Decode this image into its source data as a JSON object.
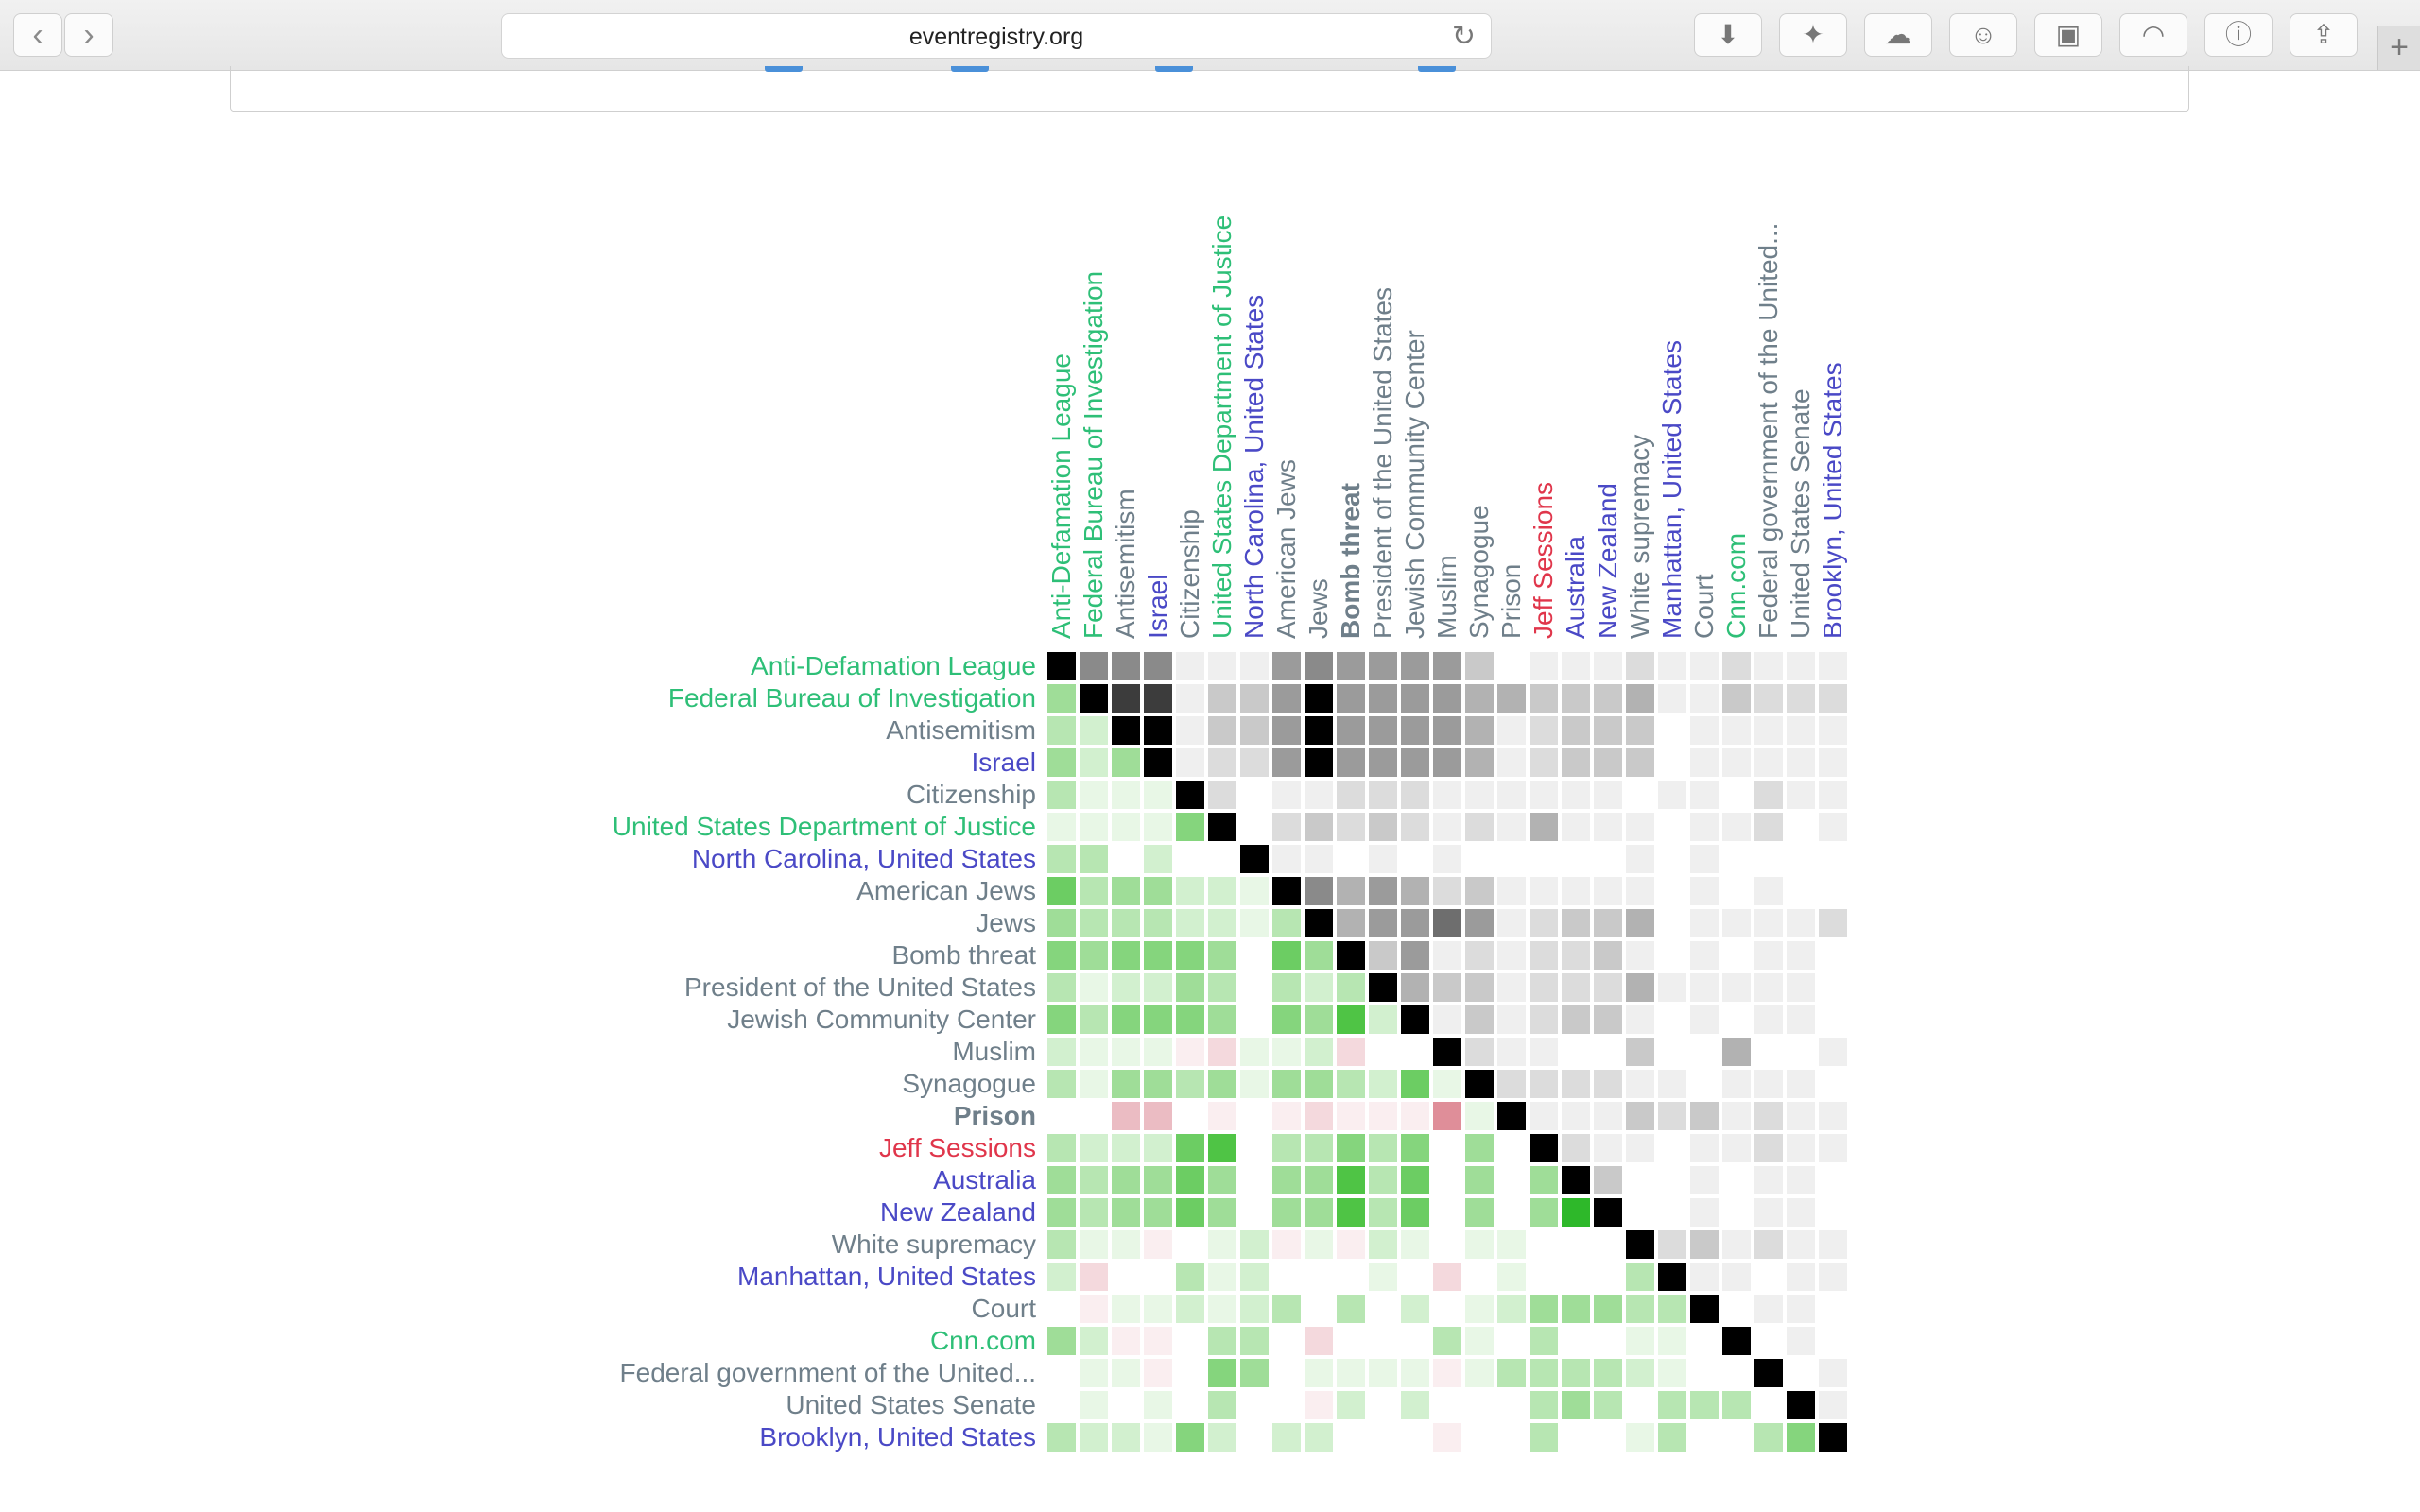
{
  "browser": {
    "url": "eventregistry.org",
    "back_icon": "chevron-left-icon",
    "forward_icon": "chevron-right-icon",
    "reload_icon": "reload-icon",
    "toolbar_icons": [
      "download-icon",
      "magic-wand-icon",
      "cloud-icon",
      "ghost-icon",
      "extension-icon",
      "reader-icon",
      "info-icon",
      "share-icon"
    ],
    "new_tab_icon": "plus-icon"
  },
  "colors": {
    "concept": "#6f7f8a",
    "organization": "#2ebf77",
    "location": "#4a49c6",
    "person": "#e0364b",
    "diagonal": "#000000",
    "positive": "#2ebf3a",
    "negative": "#d9707e"
  },
  "matrix": {
    "entities": [
      {
        "label": "Anti-Defamation League",
        "type": "org"
      },
      {
        "label": "Federal Bureau of Investigation",
        "type": "org"
      },
      {
        "label": "Antisemitism",
        "type": "concept"
      },
      {
        "label": "Israel",
        "type": "loc"
      },
      {
        "label": "Citizenship",
        "type": "concept"
      },
      {
        "label": "United States Department of Justice",
        "type": "org"
      },
      {
        "label": "North Carolina, United States",
        "type": "loc"
      },
      {
        "label": "American Jews",
        "type": "concept"
      },
      {
        "label": "Jews",
        "type": "concept"
      },
      {
        "label": "Bomb threat",
        "type": "concept",
        "col_bold": true
      },
      {
        "label": "President of the United States",
        "type": "concept"
      },
      {
        "label": "Jewish Community Center",
        "type": "concept"
      },
      {
        "label": "Muslim",
        "type": "concept"
      },
      {
        "label": "Synagogue",
        "type": "concept"
      },
      {
        "label": "Prison",
        "type": "concept",
        "row_bold": true
      },
      {
        "label": "Jeff Sessions",
        "type": "person"
      },
      {
        "label": "Australia",
        "type": "loc"
      },
      {
        "label": "New Zealand",
        "type": "loc"
      },
      {
        "label": "White supremacy",
        "type": "concept"
      },
      {
        "label": "Manhattan, United States",
        "type": "loc"
      },
      {
        "label": "Court",
        "type": "concept"
      },
      {
        "label": "Cnn.com",
        "type": "org"
      },
      {
        "label": "Federal government of the United...",
        "type": "concept"
      },
      {
        "label": "United States Senate",
        "type": "concept"
      },
      {
        "label": "Brooklyn, United States",
        "type": "loc"
      }
    ],
    "upper_gray": [
      [
        9,
        6,
        6,
        6,
        1,
        1,
        1,
        5,
        6,
        5,
        5,
        5,
        5,
        3,
        0,
        1,
        1,
        1,
        2,
        1,
        1,
        2,
        1,
        1,
        1
      ],
      [
        0,
        9,
        8,
        8,
        1,
        3,
        3,
        5,
        9,
        5,
        5,
        5,
        5,
        4,
        4,
        3,
        3,
        3,
        4,
        1,
        1,
        3,
        2,
        2,
        2
      ],
      [
        0,
        0,
        9,
        9,
        1,
        3,
        3,
        5,
        9,
        5,
        5,
        5,
        5,
        4,
        1,
        2,
        3,
        3,
        3,
        0,
        1,
        1,
        1,
        1,
        1
      ],
      [
        0,
        0,
        0,
        9,
        1,
        2,
        2,
        5,
        9,
        5,
        5,
        5,
        5,
        4,
        1,
        2,
        3,
        3,
        3,
        0,
        1,
        1,
        1,
        1,
        1
      ],
      [
        0,
        0,
        0,
        0,
        9,
        2,
        0,
        1,
        1,
        2,
        2,
        2,
        1,
        1,
        1,
        1,
        1,
        1,
        0,
        1,
        1,
        0,
        2,
        1,
        1
      ],
      [
        0,
        0,
        0,
        0,
        0,
        9,
        0,
        2,
        3,
        2,
        3,
        2,
        1,
        2,
        1,
        4,
        1,
        1,
        1,
        0,
        1,
        1,
        2,
        0,
        1
      ],
      [
        0,
        0,
        0,
        0,
        0,
        0,
        9,
        1,
        1,
        0,
        1,
        0,
        1,
        0,
        0,
        0,
        0,
        0,
        1,
        0,
        1,
        0,
        0,
        0,
        0
      ],
      [
        0,
        0,
        0,
        0,
        0,
        0,
        0,
        9,
        6,
        4,
        5,
        4,
        2,
        3,
        1,
        1,
        1,
        1,
        1,
        0,
        1,
        0,
        1,
        0,
        0
      ],
      [
        0,
        0,
        0,
        0,
        0,
        0,
        0,
        0,
        9,
        4,
        5,
        5,
        7,
        5,
        1,
        2,
        3,
        3,
        4,
        0,
        1,
        1,
        1,
        1,
        2
      ],
      [
        0,
        0,
        0,
        0,
        0,
        0,
        0,
        0,
        0,
        9,
        3,
        5,
        1,
        2,
        1,
        2,
        2,
        3,
        1,
        0,
        1,
        0,
        1,
        1,
        0
      ],
      [
        0,
        0,
        0,
        0,
        0,
        0,
        0,
        0,
        0,
        0,
        9,
        4,
        3,
        3,
        1,
        2,
        2,
        2,
        4,
        1,
        1,
        1,
        1,
        1,
        0
      ],
      [
        0,
        0,
        0,
        0,
        0,
        0,
        0,
        0,
        0,
        0,
        0,
        9,
        1,
        3,
        1,
        2,
        3,
        3,
        1,
        0,
        1,
        0,
        1,
        1,
        0
      ],
      [
        0,
        0,
        0,
        0,
        0,
        0,
        0,
        0,
        0,
        0,
        0,
        0,
        9,
        2,
        1,
        1,
        0,
        0,
        3,
        0,
        0,
        4,
        0,
        0,
        1
      ],
      [
        0,
        0,
        0,
        0,
        0,
        0,
        0,
        0,
        0,
        0,
        0,
        0,
        0,
        9,
        2,
        2,
        2,
        2,
        1,
        1,
        0,
        1,
        1,
        1,
        0
      ],
      [
        0,
        0,
        0,
        0,
        0,
        0,
        0,
        0,
        0,
        0,
        0,
        0,
        0,
        0,
        9,
        1,
        1,
        1,
        3,
        2,
        3,
        1,
        2,
        1,
        1
      ],
      [
        0,
        0,
        0,
        0,
        0,
        0,
        0,
        0,
        0,
        0,
        0,
        0,
        0,
        0,
        0,
        9,
        2,
        1,
        1,
        0,
        1,
        1,
        2,
        1,
        1
      ],
      [
        0,
        0,
        0,
        0,
        0,
        0,
        0,
        0,
        0,
        0,
        0,
        0,
        0,
        0,
        0,
        0,
        9,
        3,
        0,
        0,
        1,
        0,
        1,
        1,
        0
      ],
      [
        0,
        0,
        0,
        0,
        0,
        0,
        0,
        0,
        0,
        0,
        0,
        0,
        0,
        0,
        0,
        0,
        0,
        9,
        0,
        0,
        1,
        0,
        1,
        1,
        0
      ],
      [
        0,
        0,
        0,
        0,
        0,
        0,
        0,
        0,
        0,
        0,
        0,
        0,
        0,
        0,
        0,
        0,
        0,
        0,
        9,
        2,
        3,
        1,
        2,
        1,
        1
      ],
      [
        0,
        0,
        0,
        0,
        0,
        0,
        0,
        0,
        0,
        0,
        0,
        0,
        0,
        0,
        0,
        0,
        0,
        0,
        0,
        9,
        1,
        1,
        0,
        1,
        1
      ],
      [
        0,
        0,
        0,
        0,
        0,
        0,
        0,
        0,
        0,
        0,
        0,
        0,
        0,
        0,
        0,
        0,
        0,
        0,
        0,
        0,
        9,
        0,
        1,
        1,
        0
      ],
      [
        0,
        0,
        0,
        0,
        0,
        0,
        0,
        0,
        0,
        0,
        0,
        0,
        0,
        0,
        0,
        0,
        0,
        0,
        0,
        0,
        0,
        9,
        0,
        1,
        0
      ],
      [
        0,
        0,
        0,
        0,
        0,
        0,
        0,
        0,
        0,
        0,
        0,
        0,
        0,
        0,
        0,
        0,
        0,
        0,
        0,
        0,
        0,
        0,
        9,
        0,
        1
      ],
      [
        0,
        0,
        0,
        0,
        0,
        0,
        0,
        0,
        0,
        0,
        0,
        0,
        0,
        0,
        0,
        0,
        0,
        0,
        0,
        0,
        0,
        0,
        0,
        9,
        1
      ],
      [
        0,
        0,
        0,
        0,
        0,
        0,
        0,
        0,
        0,
        0,
        0,
        0,
        0,
        0,
        0,
        0,
        0,
        0,
        0,
        0,
        0,
        0,
        0,
        0,
        9
      ]
    ],
    "lower_corr": [
      [
        0
      ],
      [
        4,
        0
      ],
      [
        3,
        2,
        0
      ],
      [
        4,
        2,
        4,
        0
      ],
      [
        3,
        1,
        1,
        1,
        0
      ],
      [
        1,
        1,
        1,
        1,
        5,
        0
      ],
      [
        3,
        3,
        0,
        2,
        0,
        0,
        0
      ],
      [
        6,
        3,
        4,
        4,
        2,
        2,
        1,
        0
      ],
      [
        4,
        3,
        3,
        3,
        2,
        2,
        1,
        3,
        0
      ],
      [
        5,
        4,
        5,
        5,
        5,
        4,
        0,
        6,
        4,
        0
      ],
      [
        3,
        1,
        2,
        2,
        4,
        3,
        0,
        3,
        2,
        3,
        0
      ],
      [
        5,
        3,
        5,
        5,
        5,
        4,
        0,
        5,
        4,
        7,
        2,
        0
      ],
      [
        2,
        1,
        1,
        1,
        -1,
        -2,
        1,
        1,
        2,
        -2,
        0,
        0,
        0
      ],
      [
        3,
        1,
        4,
        4,
        3,
        4,
        1,
        4,
        4,
        3,
        2,
        6,
        1,
        0
      ],
      [
        0,
        0,
        -3,
        -3,
        0,
        -1,
        0,
        -1,
        -2,
        -1,
        -1,
        -1,
        -4,
        1,
        0
      ],
      [
        3,
        2,
        2,
        2,
        6,
        7,
        0,
        3,
        3,
        5,
        3,
        5,
        0,
        4,
        0,
        0
      ],
      [
        4,
        3,
        4,
        4,
        6,
        4,
        0,
        4,
        4,
        7,
        3,
        6,
        0,
        4,
        0,
        4,
        0
      ],
      [
        4,
        3,
        4,
        4,
        6,
        4,
        0,
        4,
        4,
        7,
        3,
        6,
        0,
        4,
        0,
        4,
        8,
        0
      ],
      [
        3,
        1,
        1,
        -1,
        0,
        1,
        2,
        -1,
        1,
        -1,
        2,
        1,
        0,
        1,
        1,
        0,
        0,
        0,
        0
      ],
      [
        2,
        -2,
        0,
        0,
        3,
        1,
        2,
        0,
        0,
        0,
        1,
        0,
        -2,
        0,
        1,
        0,
        0,
        0,
        3,
        0
      ],
      [
        0,
        -1,
        1,
        1,
        2,
        1,
        2,
        3,
        0,
        3,
        0,
        2,
        0,
        1,
        2,
        4,
        4,
        4,
        3,
        3,
        0
      ],
      [
        4,
        2,
        -1,
        -1,
        0,
        3,
        3,
        0,
        -2,
        0,
        0,
        0,
        3,
        1,
        0,
        3,
        0,
        0,
        1,
        1,
        0,
        0
      ],
      [
        0,
        1,
        1,
        -1,
        0,
        5,
        4,
        0,
        1,
        1,
        1,
        1,
        -1,
        1,
        3,
        3,
        3,
        3,
        2,
        1,
        0,
        0,
        0
      ],
      [
        0,
        1,
        0,
        1,
        0,
        3,
        0,
        0,
        -1,
        2,
        0,
        2,
        0,
        0,
        0,
        3,
        4,
        3,
        0,
        3,
        3,
        3,
        0,
        0
      ],
      [
        3,
        2,
        2,
        1,
        5,
        2,
        0,
        2,
        2,
        0,
        0,
        0,
        -1,
        0,
        0,
        3,
        0,
        0,
        1,
        3,
        0,
        0,
        3,
        5,
        0
      ]
    ]
  }
}
